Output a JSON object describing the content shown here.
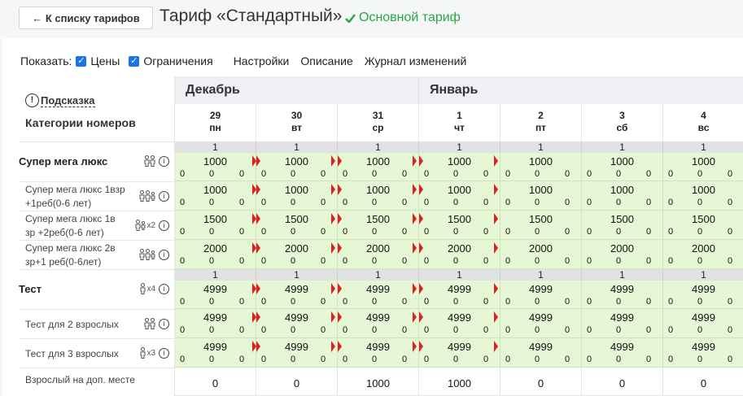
{
  "header": {
    "back_label": "← К списку тарифов",
    "title": "Тариф «Стандартный»",
    "badge": "Основной тариф",
    "badge_icon": "check-icon"
  },
  "toolbar": {
    "show_label": "Показать:",
    "prices_label": "Цены",
    "limits_label": "Ограничения",
    "settings_label": "Настройки",
    "description_label": "Описание",
    "log_label": "Журнал изменений"
  },
  "grid": {
    "hint_label": "Подсказка",
    "hint_icon_glyph": "!",
    "categories_label": "Категории номеров",
    "months": [
      "Декабрь",
      "Январь"
    ],
    "days": [
      {
        "num": "29",
        "dow": "пн"
      },
      {
        "num": "30",
        "dow": "вт"
      },
      {
        "num": "31",
        "dow": "ср"
      },
      {
        "num": "1",
        "dow": "чт"
      },
      {
        "num": "2",
        "dow": "пт"
      },
      {
        "num": "3",
        "dow": "сб"
      },
      {
        "num": "4",
        "dow": "вс"
      }
    ],
    "rows": [
      {
        "name": "Супер мега люкс",
        "main": true,
        "icons": "adult2",
        "avail": "1",
        "prices": [
          "1000",
          "1000",
          "1000",
          "1000",
          "1000",
          "1000",
          "1000"
        ]
      },
      {
        "name_lines": [
          "Супер мега люкс 1взр",
          "+1реб(0-6 лет)"
        ],
        "icons": "adult2child",
        "prices": [
          "1000",
          "1000",
          "1000",
          "1000",
          "1000",
          "1000",
          "1000"
        ]
      },
      {
        "name_lines": [
          "Супер мега люкс 1в",
          "зр +2реб(0-6 лет)"
        ],
        "icons": "adult1childx2",
        "mult": "x2",
        "prices": [
          "1500",
          "1500",
          "1500",
          "1500",
          "1500",
          "1500",
          "1500"
        ]
      },
      {
        "name_lines": [
          "Супер мега люкс 2в",
          "зр+1 реб(0-6лет)"
        ],
        "icons": "adult2child",
        "prices": [
          "2000",
          "2000",
          "2000",
          "2000",
          "2000",
          "2000",
          "2000"
        ]
      },
      {
        "name": "Тест",
        "main": true,
        "icons": "adultx4",
        "mult": "x4",
        "avail": "1",
        "prices": [
          "4999",
          "4999",
          "4999",
          "4999",
          "4999",
          "4999",
          "4999"
        ]
      },
      {
        "name": "Тест для 2 взрослых",
        "icons": "adult2",
        "prices": [
          "4999",
          "4999",
          "4999",
          "4999",
          "4999",
          "4999",
          "4999"
        ]
      },
      {
        "name": "Тест для 3 взрослых",
        "icons": "adultx3",
        "mult": "x3",
        "prices": [
          "4999",
          "4999",
          "4999",
          "4999",
          "4999",
          "4999",
          "4999"
        ]
      },
      {
        "name": "Взрослый на доп. месте",
        "extra": true,
        "prices": [
          "0",
          "0",
          "1000",
          "1000",
          "0",
          "0",
          "0"
        ]
      }
    ],
    "zero": "0",
    "info_glyph": "i"
  }
}
